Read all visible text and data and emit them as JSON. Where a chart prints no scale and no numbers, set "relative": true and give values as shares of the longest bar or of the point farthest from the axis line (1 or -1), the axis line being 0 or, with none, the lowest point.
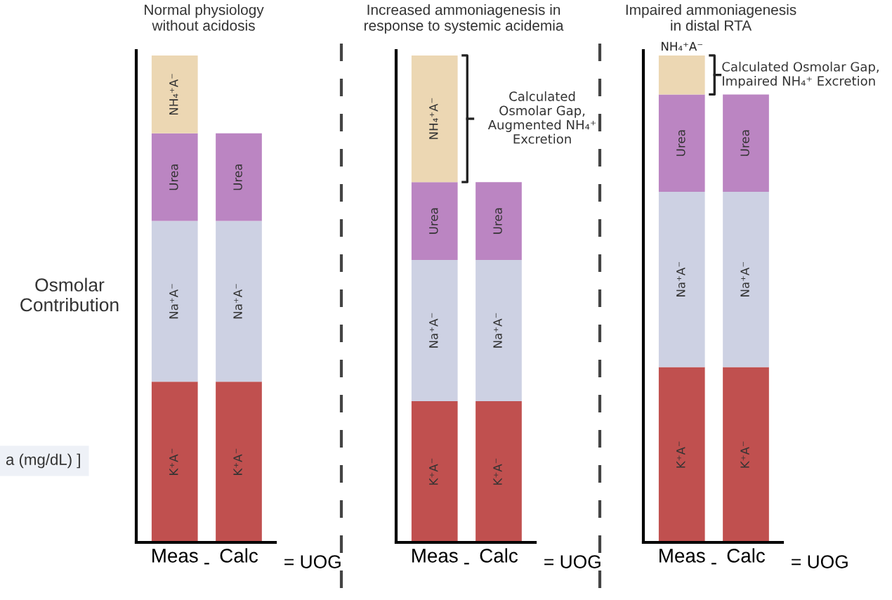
{
  "chart_data": [
    {
      "type": "bar",
      "stacked": true,
      "relative": true,
      "title": "Normal physiology\nwithout acidosis",
      "ylabel": "Osmolar\nContribution",
      "categories": [
        "Meas",
        "Calc"
      ],
      "series": [
        {
          "name": "K⁺A⁻",
          "color": "#c0504f",
          "values": [
            0.33,
            0.33
          ]
        },
        {
          "name": "Na⁺A⁻",
          "color": "#cdd1e3",
          "values": [
            0.33,
            0.33
          ]
        },
        {
          "name": "Urea",
          "color": "#bb85c2",
          "values": [
            0.18,
            0.18
          ]
        },
        {
          "name": "NH₄⁺A⁻",
          "color": "#ecd7b3",
          "values": [
            0.16,
            null
          ]
        }
      ],
      "annotations": [
        "-",
        "= UOG",
        "a (mg/dL) ]"
      ]
    },
    {
      "type": "bar",
      "stacked": true,
      "relative": true,
      "title": "Increased ammoniagenesis in\nresponse to systemic acidemia",
      "categories": [
        "Meas",
        "Calc"
      ],
      "series": [
        {
          "name": "K⁺A⁻",
          "color": "#c0504f",
          "values": [
            0.29,
            0.29
          ]
        },
        {
          "name": "Na⁺A⁻",
          "color": "#cdd1e3",
          "values": [
            0.29,
            0.29
          ]
        },
        {
          "name": "Urea",
          "color": "#bb85c2",
          "values": [
            0.16,
            0.16
          ]
        },
        {
          "name": "NH₄⁺A⁻",
          "color": "#ecd7b3",
          "values": [
            0.26,
            null
          ]
        }
      ],
      "annotations": [
        "-",
        "= UOG",
        "Calculated\nOsmolar Gap,\nAugmented NH₄⁺\nExcretion"
      ]
    },
    {
      "type": "bar",
      "stacked": true,
      "relative": true,
      "title": "Impaired ammoniagenesis\nin distal RTA",
      "categories": [
        "Meas",
        "Calc"
      ],
      "series": [
        {
          "name": "K⁺A⁻",
          "color": "#c0504f",
          "values": [
            0.36,
            0.36
          ]
        },
        {
          "name": "Na⁺A⁻",
          "color": "#cdd1e3",
          "values": [
            0.36,
            0.36
          ]
        },
        {
          "name": "Urea",
          "color": "#bb85c2",
          "values": [
            0.2,
            0.2
          ]
        },
        {
          "name": "NH₄⁺A⁻",
          "color": "#ecd7b3",
          "values": [
            0.08,
            null
          ]
        }
      ],
      "annotations": [
        "-",
        "= UOG",
        "Calculated Osmolar Gap,\nImpaired NH₄⁺ Excretion"
      ]
    }
  ]
}
